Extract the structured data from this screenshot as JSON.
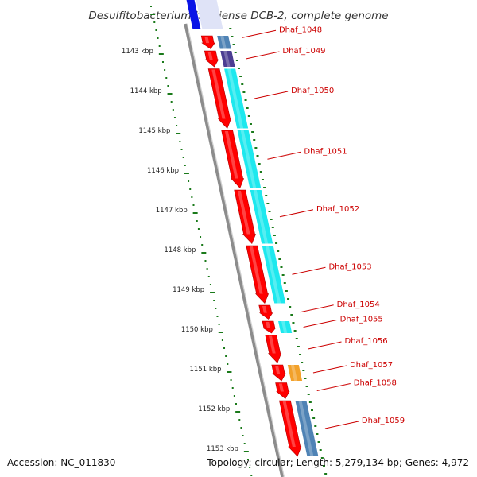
{
  "title": "Desulfitobacterium hafniense DCB-2, complete genome",
  "footer": {
    "accession": "Accession: NC_011830",
    "summary": "Topology: circular; Length: 5,279,134 bp; Genes: 4,972"
  },
  "colors": {
    "backbone": "#8c8c8c",
    "gene_forward": "#ff0000",
    "ruler_ticks": "#1a7a1a",
    "label": "#cc0000",
    "cog_steelblue": "#4f83b5",
    "cog_purple": "#4b3d92",
    "cog_cyan": "#1ee8ee",
    "cog_orange": "#f2a12a",
    "cog_gray": "#c8c8c8",
    "cog_blue": "#0a14e6"
  },
  "chart_data": {
    "type": "genome-map",
    "scale_unit": "kbp",
    "scale_labels": [
      "1143 kbp",
      "1144 kbp",
      "1145 kbp",
      "1146 kbp",
      "1147 kbp",
      "1148 kbp",
      "1149 kbp",
      "1150 kbp",
      "1151 kbp",
      "1152 kbp",
      "1153 kbp"
    ],
    "genes": [
      {
        "label": "Dhaf_1048",
        "start_kbp": 1142.62,
        "end_kbp": 1142.95,
        "cog_color": "#4f83b5"
      },
      {
        "label": "Dhaf_1049",
        "start_kbp": 1143.0,
        "end_kbp": 1143.4,
        "cog_color": "#4b3d92"
      },
      {
        "label": "Dhaf_1050",
        "start_kbp": 1143.45,
        "end_kbp": 1144.95,
        "cog_color": "#1ee8ee"
      },
      {
        "label": "Dhaf_1051",
        "start_kbp": 1145.0,
        "end_kbp": 1146.45,
        "cog_color": "#1ee8ee"
      },
      {
        "label": "Dhaf_1052",
        "start_kbp": 1146.5,
        "end_kbp": 1147.85,
        "cog_color": "#1ee8ee"
      },
      {
        "label": "Dhaf_1053",
        "start_kbp": 1147.9,
        "end_kbp": 1149.35,
        "cog_color": "#1ee8ee"
      },
      {
        "label": "Dhaf_1054",
        "start_kbp": 1149.4,
        "end_kbp": 1149.75,
        "cog_color": ""
      },
      {
        "label": "Dhaf_1055",
        "start_kbp": 1149.8,
        "end_kbp": 1150.1,
        "cog_color": "#1ee8ee"
      },
      {
        "label": "Dhaf_1056",
        "start_kbp": 1150.15,
        "end_kbp": 1150.85,
        "cog_color": ""
      },
      {
        "label": "Dhaf_1057",
        "start_kbp": 1150.9,
        "end_kbp": 1151.3,
        "cog_color": "#f2a12a"
      },
      {
        "label": "Dhaf_1058",
        "start_kbp": 1151.35,
        "end_kbp": 1151.75,
        "cog_color": ""
      },
      {
        "label": "Dhaf_1059",
        "start_kbp": 1151.8,
        "end_kbp": 1153.2,
        "cog_color": "#4f83b5"
      }
    ]
  }
}
